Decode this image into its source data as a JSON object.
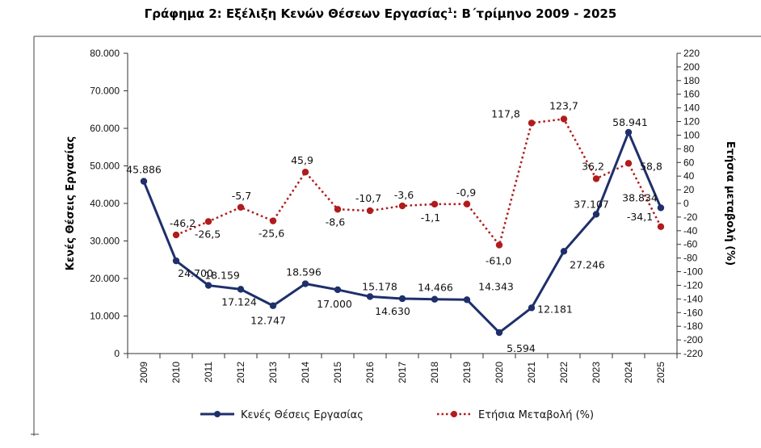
{
  "chart_data": {
    "type": "line",
    "title": "Γράφημα 2: Εξέλιξη Κενών Θέσεων Εργασίας",
    "title_sup": "1",
    "title_suffix": ": Β΄τρίμηνο 2009 - 2025",
    "categories": [
      "2009",
      "2010",
      "2011",
      "2012",
      "2013",
      "2014",
      "2015",
      "2016",
      "2017",
      "2018",
      "2019",
      "2020",
      "2021",
      "2022",
      "2023",
      "2024",
      "2025"
    ],
    "ylabel": "Κενές Θέσεις Εργασίας",
    "y2label": "Ετήσια μεταβολή (%)",
    "ylim": [
      0,
      80000
    ],
    "y2lim": [
      -220,
      220
    ],
    "yticks": [
      "0",
      "10.000",
      "20.000",
      "30.000",
      "40.000",
      "50.000",
      "60.000",
      "70.000",
      "80.000"
    ],
    "y2ticks": [
      "220",
      "200",
      "180",
      "160",
      "140",
      "120",
      "100",
      "80",
      "60",
      "40",
      "20",
      "0",
      "-20",
      "-40",
      "-60",
      "-80",
      "-100",
      "-120",
      "-140",
      "-160",
      "-180",
      "-200",
      "-220"
    ],
    "series": [
      {
        "name": "Κενές Θέσεις Εργασίας",
        "axis": "left",
        "color": "#1f2f6b",
        "style": "solid",
        "values": [
          45886,
          24700,
          18159,
          17124,
          12747,
          18596,
          17000,
          15178,
          14630,
          14466,
          14343,
          5594,
          12181,
          27246,
          37107,
          58941,
          38834
        ],
        "labels": [
          "45.886",
          "24.700",
          "18.159",
          "17.124",
          "12.747",
          "18.596",
          "17.000",
          "15.178",
          "14.630",
          "14.466",
          "14.343",
          "5.594",
          "12.181",
          "27.246",
          "37.107",
          "58.941",
          "38.834"
        ]
      },
      {
        "name": "Ετήσια Μεταβολή (%)",
        "axis": "right",
        "color": "#b01c1c",
        "style": "dotted",
        "values": [
          null,
          -46.2,
          -26.5,
          -5.7,
          -25.6,
          45.9,
          -8.6,
          -10.7,
          -3.6,
          -1.1,
          -0.9,
          -61.0,
          117.8,
          123.7,
          36.2,
          58.8,
          -34.1
        ],
        "labels": [
          null,
          "-46,2",
          "-26,5",
          "-5,7",
          "-25,6",
          "45,9",
          "-8,6",
          "-10,7",
          "-3,6",
          "-1,1",
          "-0,9",
          "-61,0",
          "117,8",
          "123,7",
          "36,2",
          "58,8",
          "-34,1"
        ]
      }
    ],
    "legend": "bottom",
    "grid": false
  }
}
